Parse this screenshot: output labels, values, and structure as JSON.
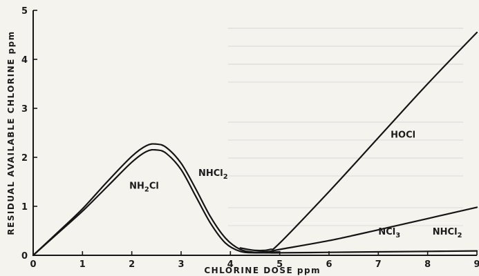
{
  "chart_data": {
    "type": "line",
    "title": "",
    "xlabel": "CHLORINE  DOSE  ppm",
    "ylabel": "RESIDUAL  AVAILABLE  CHLORINE  ppm",
    "xlim": [
      0,
      9
    ],
    "ylim": [
      0,
      5
    ],
    "x_ticks": [
      "0",
      "1",
      "2",
      "3",
      "4",
      "5",
      "6",
      "7",
      "8",
      "9"
    ],
    "y_ticks": [
      "0",
      "1",
      "2",
      "3",
      "4",
      "5"
    ],
    "grid": false,
    "legend": "none",
    "series": [
      {
        "name": "NH2Cl",
        "label_base": "NH",
        "label_sub": "2",
        "label_tail": "Cl",
        "x": [
          0,
          0.5,
          1.0,
          1.5,
          2.0,
          2.3,
          2.5,
          2.7,
          3.0,
          3.3,
          3.6,
          3.9,
          4.2,
          4.5,
          4.8,
          5.0
        ],
        "y": [
          0,
          0.45,
          0.9,
          1.4,
          1.9,
          2.12,
          2.15,
          2.08,
          1.75,
          1.2,
          0.65,
          0.25,
          0.08,
          0.05,
          0.06,
          0.07
        ]
      },
      {
        "name": "NHCl2",
        "label_base": "NHCl",
        "label_sub": "2",
        "label_tail": "",
        "x": [
          0,
          0.5,
          1.0,
          1.5,
          2.0,
          2.3,
          2.5,
          2.7,
          3.0,
          3.3,
          3.6,
          3.9,
          4.2,
          4.5,
          4.8,
          5.0,
          6.0,
          7.0,
          8.0,
          9.0
        ],
        "y": [
          0,
          0.47,
          0.95,
          1.5,
          2.02,
          2.24,
          2.27,
          2.2,
          1.88,
          1.35,
          0.78,
          0.35,
          0.12,
          0.06,
          0.05,
          0.05,
          0.06,
          0.07,
          0.08,
          0.09
        ]
      },
      {
        "name": "NCl3",
        "label_base": "NCl",
        "label_sub": "3",
        "label_tail": "",
        "x": [
          4.5,
          4.8,
          5.0,
          6.0,
          7.0,
          8.0,
          9.0
        ],
        "y": [
          0.06,
          0.08,
          0.12,
          0.3,
          0.52,
          0.75,
          0.98
        ]
      },
      {
        "name": "HOCl",
        "label_base": "HOCl",
        "label_sub": "",
        "label_tail": "",
        "x": [
          4.2,
          4.5,
          4.8,
          5.0,
          6.0,
          7.0,
          8.0,
          9.0
        ],
        "y": [
          0.15,
          0.1,
          0.12,
          0.25,
          1.3,
          2.4,
          3.5,
          4.55
        ]
      }
    ],
    "annotations": [
      {
        "series": "NH2Cl",
        "x": 1.95,
        "y": 1.36
      },
      {
        "series": "NHCl2",
        "x": 3.35,
        "y": 1.62
      },
      {
        "series": "HOCl",
        "x": 7.25,
        "y": 2.4
      },
      {
        "series": "NCl3",
        "x": 7.0,
        "y": 0.42
      },
      {
        "series": "NHCl2",
        "x": 8.1,
        "y": 0.42
      }
    ]
  }
}
